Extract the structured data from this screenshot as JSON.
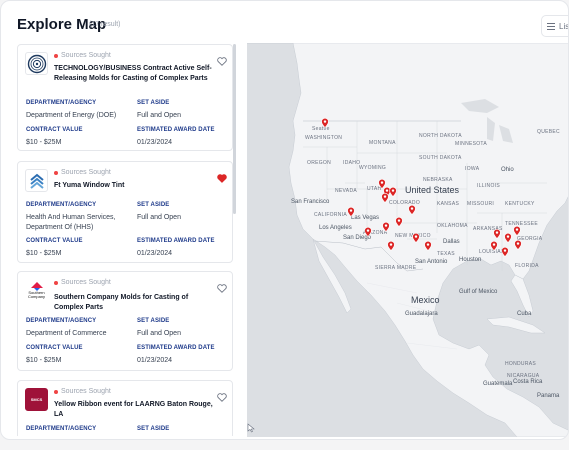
{
  "header": {
    "title": "Explore Map",
    "count": "(17 result)",
    "list_label": "List"
  },
  "cards": [
    {
      "type": "Sources Sought",
      "name": "TECHNOLOGY/BUSINESS Contract Active Self-Releasing Molds for Casting of Complex Parts",
      "favorited": false,
      "logo": "doe-seal",
      "dept_label": "DEPARTMENT/AGENCY",
      "dept": "Department of Energy (DOE)",
      "aside_label": "SET ASIDE",
      "aside": "Full and Open",
      "value_label": "CONTRACT VALUE",
      "value": "$10 - $25M",
      "date_label": "ESTIMATED AWARD DATE",
      "date": "01/23/2024"
    },
    {
      "type": "Sources Sought",
      "name": "Ft Yuma Window Tint",
      "favorited": true,
      "logo": "hhs-chevrons",
      "dept_label": "DEPARTMENT/AGENCY",
      "dept": "Health And Human Services, Department Of (HHS)",
      "aside_label": "SET ASIDE",
      "aside": "Full and Open",
      "value_label": "CONTRACT VALUE",
      "value": "$10 - $25M",
      "date_label": "ESTIMATED AWARD DATE",
      "date": "01/23/2024"
    },
    {
      "type": "Sources Sought",
      "name": "Southern Company Molds for Casting of Complex Parts",
      "favorited": false,
      "logo": "southern-company",
      "logo_text": "Southern Company",
      "dept_label": "DEPARTMENT/AGENCY",
      "dept": "Department of Commerce",
      "aside_label": "SET ASIDE",
      "aside": "Full and Open",
      "value_label": "CONTRACT VALUE",
      "value": "$10 - $25M",
      "date_label": "ESTIMATED AWARD DATE",
      "date": "01/23/2024"
    },
    {
      "type": "Sources Sought",
      "name": "Yellow Ribbon event for LAARNG Baton Rouge, LA",
      "favorited": false,
      "logo": "smcs",
      "logo_text": "SMCS",
      "dept_label": "DEPARTMENT/AGENCY",
      "aside_label": "SET ASIDE"
    }
  ],
  "map_labels": {
    "seattle": "Seattle",
    "washington": "WASHINGTON",
    "oregon": "OREGON",
    "idaho": "IDAHO",
    "montana": "MONTANA",
    "north_dakota": "NORTH DAKOTA",
    "south_dakota": "SOUTH DAKOTA",
    "wyoming": "WYOMING",
    "nebraska": "NEBRASKA",
    "minnesota": "MINNESOTA",
    "iowa": "IOWA",
    "illinois": "ILLINOIS",
    "ohio": "Ohio",
    "nevada": "NEVADA",
    "utah": "UTAH",
    "colorado": "COLORADO",
    "kansas": "KANSAS",
    "missouri": "MISSOURI",
    "kentucky": "KENTUCKY",
    "united_states": "United States",
    "san_francisco": "San Francisco",
    "california": "CALIFORNIA",
    "las_vegas": "Las Vegas",
    "oklahoma": "OKLAHOMA",
    "tennessee": "TENNESSEE",
    "los_angeles": "Los Angeles",
    "san_diego": "San Diego",
    "arizona": "ARIZONA",
    "new_mexico": "NEW MEXICO",
    "arkansas": "ARKANSAS",
    "georgia": "GEORGIA",
    "texas": "TEXAS",
    "dallas": "Dallas",
    "louisiana": "LOUISIANA",
    "san_antonio": "San Antonio",
    "houston": "Houston",
    "florida": "FLORIDA",
    "mexico": "Mexico",
    "guadalajara": "Guadalajara",
    "guatemala": "Guatemala",
    "honduras": "HONDURAS",
    "nicaragua": "NICARAGUA",
    "costa_rica": "Costa Rica",
    "panama": "Panama",
    "cuba": "Cuba",
    "gulf": "Gulf of Mexico",
    "sierra": "SIERRA MADRE",
    "quebec": "QUEBEC"
  },
  "colors": {
    "pin": "#dc2626",
    "label_navy": "#1e3a8a",
    "status_dot": "#ef4444"
  }
}
